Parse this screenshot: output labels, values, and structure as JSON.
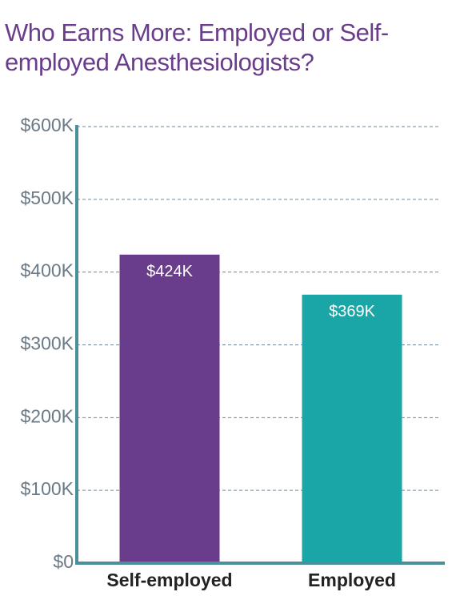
{
  "chart_data": {
    "type": "bar",
    "title": "Who Earns More: Employed or Self-employed Anesthesiologists?",
    "categories": [
      "Self-employed",
      "Employed"
    ],
    "values": [
      424000,
      369000
    ],
    "value_labels": [
      "$424K",
      "$369K"
    ],
    "colors": [
      "#6a3d8c",
      "#1aa6a6"
    ],
    "ylim": [
      0,
      600000
    ],
    "yticks": [
      {
        "value": 0,
        "label": "$0"
      },
      {
        "value": 100000,
        "label": "$100K"
      },
      {
        "value": 200000,
        "label": "$200K"
      },
      {
        "value": 300000,
        "label": "$300K"
      },
      {
        "value": 400000,
        "label": "$400K"
      },
      {
        "value": 500000,
        "label": "$500K"
      },
      {
        "value": 600000,
        "label": "$600K"
      }
    ],
    "grid": true
  }
}
